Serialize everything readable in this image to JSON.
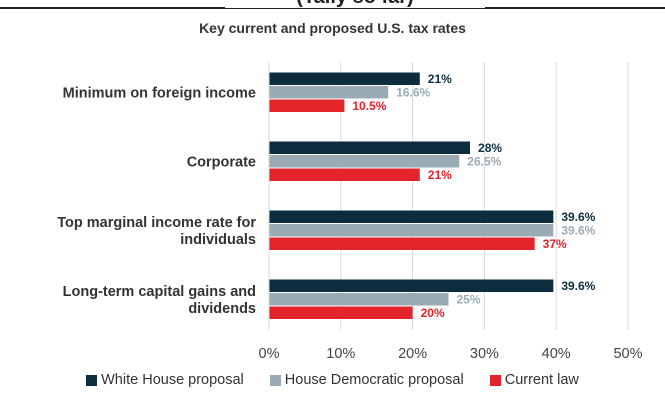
{
  "header_fragment": "(Tally so far)",
  "chart_data": {
    "type": "bar",
    "orientation": "horizontal",
    "title": "Key current and proposed U.S. tax rates",
    "categories": [
      "Minimum on foreign income",
      "Corporate",
      "Top marginal income rate for individuals",
      "Long-term capital gains and dividends"
    ],
    "series": [
      {
        "name": "White House proposal",
        "color": "#0d2d3e",
        "label_color": "#0d2d3e",
        "values": [
          21,
          28,
          39.6,
          39.6
        ],
        "labels": [
          "21%",
          "28%",
          "39.6%",
          "39.6%"
        ]
      },
      {
        "name": "House Democratic proposal",
        "color": "#9aabb6",
        "label_color": "#9aabb6",
        "values": [
          16.6,
          26.5,
          39.6,
          25
        ],
        "labels": [
          "16.6%",
          "26.5%",
          "39.6%",
          "25%"
        ]
      },
      {
        "name": "Current law",
        "color": "#e3242b",
        "label_color": "#e3242b",
        "values": [
          10.5,
          21,
          37,
          20
        ],
        "labels": [
          "10.5%",
          "21%",
          "37%",
          "20%"
        ]
      }
    ],
    "x_ticks": [
      "0%",
      "10%",
      "20%",
      "30%",
      "40%",
      "50%"
    ],
    "xlim": [
      0,
      50
    ],
    "grid": "vertical",
    "legend_position": "bottom"
  }
}
